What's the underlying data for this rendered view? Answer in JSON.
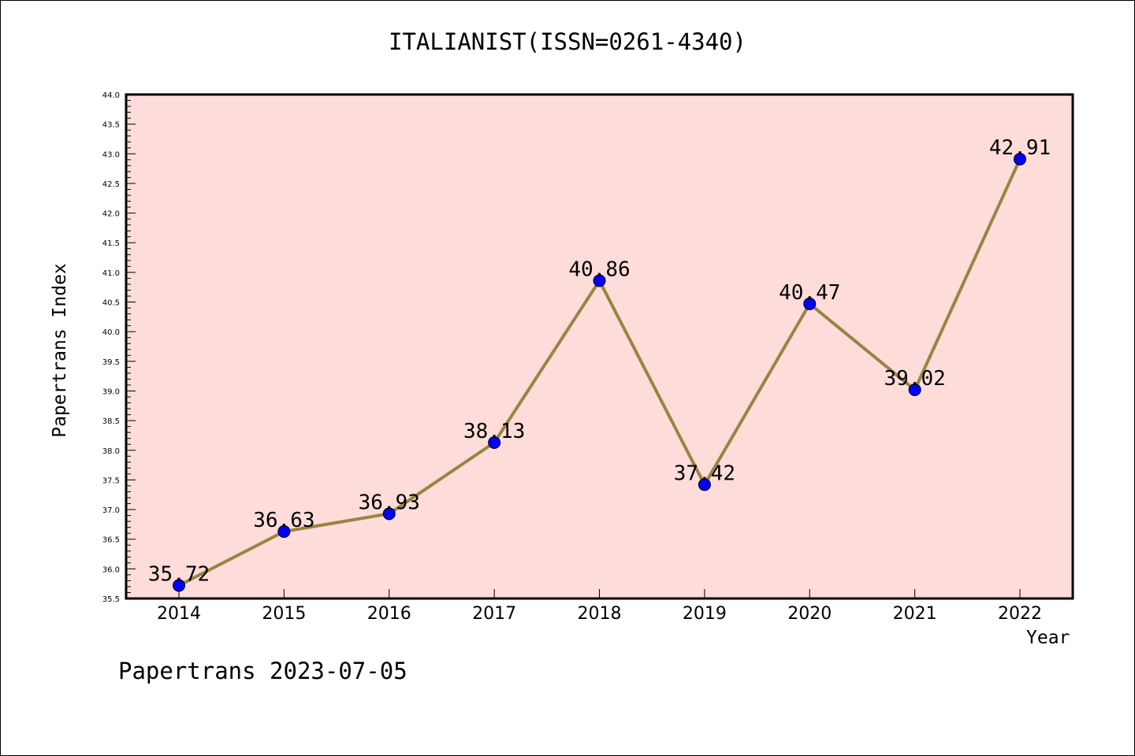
{
  "page": {
    "title": "ITALIANIST(ISSN=0261-4340)",
    "footer": "Papertrans 2023-07-05"
  },
  "chart_data": {
    "type": "line",
    "title": "ITALIANIST(ISSN=0261-4340)",
    "xlabel": "Year",
    "ylabel": "Papertrans Index",
    "categories": [
      "2014",
      "2015",
      "2016",
      "2017",
      "2018",
      "2019",
      "2020",
      "2021",
      "2022"
    ],
    "values": [
      35.72,
      36.63,
      36.93,
      38.13,
      40.86,
      37.42,
      40.47,
      39.02,
      42.91
    ],
    "data_labels": [
      "35.72",
      "36.63",
      "36.93",
      "38.13",
      "40.86",
      "37.42",
      "40.47",
      "39.02",
      "42.91"
    ],
    "ylim": [
      35.5,
      44.0
    ],
    "yticks": [
      "35.5",
      "36.0",
      "36.5",
      "37.0",
      "37.5",
      "38.0",
      "38.5",
      "39.0",
      "39.5",
      "40.0",
      "40.5",
      "41.0",
      "41.5",
      "42.0",
      "42.5",
      "43.0",
      "43.5",
      "44.0"
    ],
    "grid": false,
    "colors": {
      "plot_background": "#fddcda",
      "line": "#9a8442",
      "marker": "#0000ff"
    }
  }
}
